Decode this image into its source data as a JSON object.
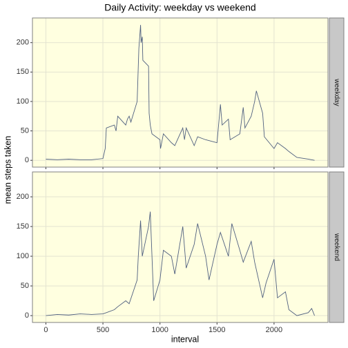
{
  "title": "Daily Activity: weekday vs weekend",
  "xlabel": "interval",
  "ylabel": "mean steps taken",
  "chart_data": [
    {
      "type": "line",
      "facet": "weekday",
      "color": "#4f5f7f",
      "panel_color": "#ffffe0",
      "grid": true,
      "xlim": [
        -117.75,
        2472.75
      ],
      "xticks": [
        0,
        500,
        1000,
        1500,
        2000
      ],
      "ylim": [
        -11.5,
        241.9
      ],
      "yticks": [
        0,
        50,
        100,
        150,
        200
      ],
      "x": [
        0,
        100,
        200,
        300,
        400,
        500,
        520,
        530,
        600,
        615,
        630,
        700,
        715,
        730,
        745,
        800,
        810,
        815,
        830,
        835,
        845,
        850,
        900,
        905,
        915,
        930,
        1000,
        1005,
        1030,
        1100,
        1130,
        1200,
        1215,
        1230,
        1300,
        1330,
        1400,
        1500,
        1530,
        1545,
        1600,
        1615,
        1700,
        1730,
        1745,
        1800,
        1830,
        1845,
        1900,
        1915,
        2000,
        2030,
        2100,
        2130,
        2200,
        2300,
        2355
      ],
      "values": [
        2,
        1,
        2,
        1,
        1,
        3,
        20,
        55,
        60,
        50,
        75,
        60,
        70,
        75,
        65,
        100,
        160,
        190,
        230,
        200,
        210,
        170,
        160,
        80,
        60,
        45,
        35,
        20,
        45,
        30,
        25,
        55,
        35,
        55,
        25,
        40,
        35,
        30,
        95,
        60,
        70,
        35,
        45,
        90,
        55,
        75,
        100,
        118,
        80,
        40,
        20,
        30,
        20,
        15,
        5,
        2,
        0
      ]
    },
    {
      "type": "line",
      "facet": "weekend",
      "color": "#4f5f7f",
      "panel_color": "#ffffe0",
      "grid": true,
      "xlim": [
        -117.75,
        2472.75
      ],
      "xticks": [
        0,
        500,
        1000,
        1500,
        2000
      ],
      "ylim": [
        -11.5,
        241.9
      ],
      "yticks": [
        0,
        50,
        100,
        150,
        200
      ],
      "x": [
        0,
        100,
        200,
        300,
        400,
        500,
        530,
        600,
        630,
        700,
        730,
        800,
        810,
        830,
        845,
        900,
        915,
        930,
        945,
        1000,
        1030,
        1100,
        1130,
        1200,
        1230,
        1300,
        1330,
        1400,
        1430,
        1500,
        1530,
        1600,
        1630,
        1700,
        1730,
        1800,
        1830,
        1900,
        1930,
        2000,
        2030,
        2100,
        2130,
        2200,
        2300,
        2330,
        2355
      ],
      "values": [
        0,
        2,
        1,
        3,
        2,
        3,
        5,
        10,
        15,
        25,
        20,
        60,
        100,
        160,
        100,
        150,
        175,
        100,
        25,
        60,
        110,
        100,
        70,
        150,
        80,
        120,
        155,
        100,
        60,
        120,
        140,
        100,
        155,
        110,
        90,
        125,
        90,
        30,
        55,
        95,
        30,
        40,
        10,
        0,
        5,
        12,
        0
      ]
    }
  ]
}
